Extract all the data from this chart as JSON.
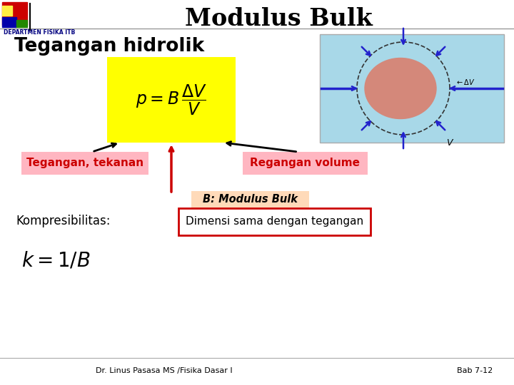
{
  "title": "Modulus Bulk",
  "subtitle": "Tegangan hidrolik",
  "bg_color": "#FFFFFF",
  "dept_text": "DEPARTMEN FISIKA ITB",
  "dept_color": "#000080",
  "formula_text": "$p = B\\,\\dfrac{\\Delta V}{V}$",
  "label_tegangan": "Tegangan, tekanan",
  "label_regangan": "Regangan volume",
  "label_tegangan_bg": "#FFB6C1",
  "label_regangan_bg": "#FFB6C1",
  "label_B": "B: Modulus Bulk",
  "label_B_bg": "#FFDAB9",
  "label_dimensi": "Dimensi sama dengan tegangan",
  "label_kompresibilitas": "Kompresibilitas:",
  "formula_k": "$k = 1/ B$",
  "footer_left": "Dr. Linus Pasasa MS /Fisika Dasar I",
  "footer_right": "Bab 7-12",
  "arrow_color_black": "#000000",
  "arrow_color_red": "#CC0000",
  "box_dimensi_border": "#CC0000",
  "subtitle_color": "#000000",
  "label_tegangan_color": "#CC0000",
  "label_regangan_color": "#CC0000",
  "formula_box_color": "#FFFF00",
  "sphere_bg": "#A8D8E8",
  "sphere_color": "#D4887A"
}
